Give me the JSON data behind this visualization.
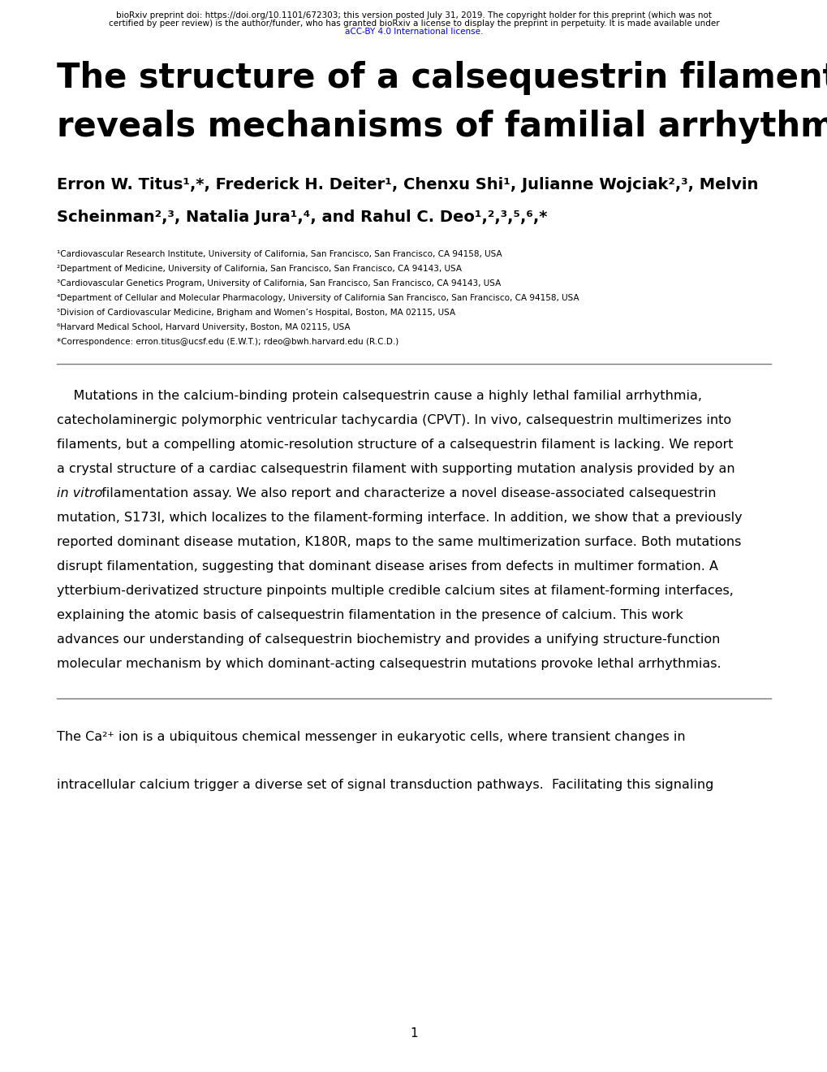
{
  "bg_color": "#ffffff",
  "header_line1": "bioRxiv preprint doi: https://doi.org/10.1101/672303; this version posted July 31, 2019. The copyright holder for this preprint (which was not",
  "header_line2": "certified by peer review) is the author/funder, who has granted bioRxiv a license to display the preprint in perpetuity. It is made available under",
  "header_line3": "aCC-BY 4.0 International license.",
  "title_line1": "The structure of a calsequestrin filament",
  "title_line2": "reveals mechanisms of familial arrhythmia",
  "authors_line1": "Erron W. Titus¹,*, Frederick H. Deiter¹, Chenxu Shi¹, Julianne Wojciak²,³, Melvin",
  "authors_line2": "Scheinman²,³, Natalia Jura¹,⁴, and Rahul C. Deo¹,²,³,⁵,⁶,*",
  "affiliations": [
    "¹Cardiovascular Research Institute, University of California, San Francisco, San Francisco, CA 94158, USA",
    "²Department of Medicine, University of California, San Francisco, San Francisco, CA 94143, USA",
    "³Cardiovascular Genetics Program, University of California, San Francisco, San Francisco, CA 94143, USA",
    "⁴Department of Cellular and Molecular Pharmacology, University of California San Francisco, San Francisco, CA 94158, USA",
    "⁵Division of Cardiovascular Medicine, Brigham and Women’s Hospital, Boston, MA 02115, USA",
    "⁶Harvard Medical School, Harvard University, Boston, MA 02115, USA",
    "*Correspondence: erron.titus@ucsf.edu (E.W.T.); rdeo@bwh.harvard.edu (R.C.D.)"
  ],
  "abstract_lines": [
    "    Mutations in the calcium-binding protein calsequestrin cause a highly lethal familial arrhythmia,",
    "catecholaminergic polymorphic ventricular tachycardia (CPVT). In vivo, calsequestrin multimerizes into",
    "filaments, but a compelling atomic-resolution structure of a calsequestrin filament is lacking. We report",
    "a crystal structure of a cardiac calsequestrin filament with supporting mutation analysis provided by an",
    "in vitro filamentation assay. We also report and characterize a novel disease-associated calsequestrin",
    "mutation, S173I, which localizes to the filament-forming interface. In addition, we show that a previously",
    "reported dominant disease mutation, K180R, maps to the same multimerization surface. Both mutations",
    "disrupt filamentation, suggesting that dominant disease arises from defects in multimer formation. A",
    "ytterbium-derivatized structure pinpoints multiple credible calcium sites at filament-forming interfaces,",
    "explaining the atomic basis of calsequestrin filamentation in the presence of calcium. This work",
    "advances our understanding of calsequestrin biochemistry and provides a unifying structure-function",
    "molecular mechanism by which dominant-acting calsequestrin mutations provoke lethal arrhythmias."
  ],
  "abstract_italic_line": 4,
  "body_line1": "The Ca²⁺ ion is a ubiquitous chemical messenger in eukaryotic cells, where transient changes in",
  "body_line2": "intracellular calcium trigger a diverse set of signal transduction pathways.  Facilitating this signaling",
  "page_number": "1"
}
